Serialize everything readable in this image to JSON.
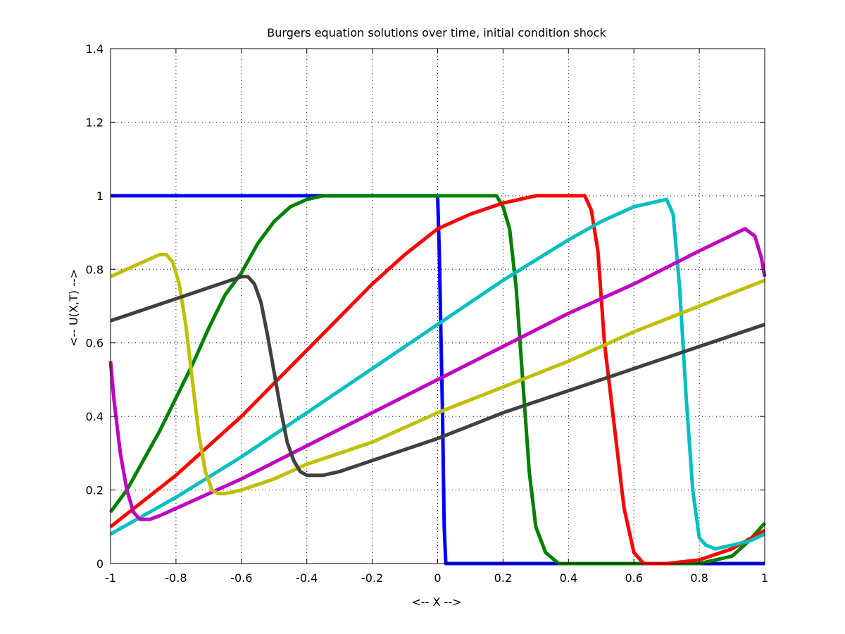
{
  "chart_data": {
    "type": "line",
    "title": "Burgers equation solutions over time, initial condition shock",
    "xlabel": "<-- X -->",
    "ylabel": "<-- U(X,T) -->",
    "xlim": [
      -1,
      1
    ],
    "ylim": [
      0,
      1.4
    ],
    "xticks": [
      -1,
      -0.8,
      -0.6,
      -0.4,
      -0.2,
      0,
      0.2,
      0.4,
      0.6,
      0.8,
      1
    ],
    "xtick_labels": [
      "-1",
      "-0.8",
      "-0.6",
      "-0.4",
      "-0.2",
      "0",
      "0.2",
      "0.4",
      "0.6",
      "0.8",
      "1"
    ],
    "yticks": [
      0,
      0.2,
      0.4,
      0.6,
      0.8,
      1,
      1.2,
      1.4
    ],
    "ytick_labels": [
      "0",
      "0.2",
      "0.4",
      "0.6",
      "0.8",
      "1",
      "1.2",
      "1.4"
    ],
    "grid": true,
    "legend": "none",
    "series": [
      {
        "color": "#0000ff",
        "x": [
          -1,
          -0.3,
          0.0,
          0.005,
          0.015,
          0.02,
          0.025,
          1
        ],
        "y": [
          1,
          1,
          1,
          0.85,
          0.4,
          0.1,
          0.0,
          0.0
        ]
      },
      {
        "color": "#008000",
        "x": [
          -1,
          -0.95,
          -0.9,
          -0.85,
          -0.8,
          -0.75,
          -0.7,
          -0.65,
          -0.6,
          -0.55,
          -0.5,
          -0.45,
          -0.4,
          -0.35,
          -0.3,
          -0.25,
          0.0,
          0.15,
          0.18,
          0.2,
          0.22,
          0.24,
          0.26,
          0.28,
          0.3,
          0.33,
          0.37,
          0.45,
          0.65,
          0.8,
          0.9,
          0.95,
          1.0
        ],
        "y": [
          0.14,
          0.2,
          0.28,
          0.36,
          0.45,
          0.54,
          0.64,
          0.73,
          0.79,
          0.87,
          0.93,
          0.97,
          0.99,
          1.0,
          1.0,
          1.0,
          1.0,
          1.0,
          1.0,
          0.97,
          0.91,
          0.75,
          0.5,
          0.25,
          0.1,
          0.03,
          0.0,
          0.0,
          0.0,
          0.0,
          0.02,
          0.06,
          0.11
        ]
      },
      {
        "color": "#ff0000",
        "x": [
          -1,
          -0.8,
          -0.6,
          -0.4,
          -0.2,
          -0.1,
          0.0,
          0.1,
          0.2,
          0.3,
          0.4,
          0.45,
          0.47,
          0.49,
          0.51,
          0.53,
          0.55,
          0.57,
          0.6,
          0.63,
          0.7,
          0.8,
          0.9,
          1.0
        ],
        "y": [
          0.1,
          0.24,
          0.4,
          0.58,
          0.76,
          0.84,
          0.91,
          0.95,
          0.98,
          1.0,
          1.0,
          1.0,
          0.96,
          0.85,
          0.6,
          0.45,
          0.3,
          0.15,
          0.03,
          0.0,
          0.0,
          0.01,
          0.04,
          0.09
        ]
      },
      {
        "color": "#00bfbf",
        "x": [
          -1,
          -0.8,
          -0.6,
          -0.4,
          -0.2,
          0.0,
          0.2,
          0.4,
          0.5,
          0.6,
          0.7,
          0.72,
          0.74,
          0.76,
          0.78,
          0.8,
          0.82,
          0.85,
          0.9,
          0.95,
          1.0
        ],
        "y": [
          0.08,
          0.18,
          0.29,
          0.41,
          0.53,
          0.65,
          0.77,
          0.88,
          0.93,
          0.97,
          0.99,
          0.95,
          0.75,
          0.45,
          0.2,
          0.07,
          0.05,
          0.04,
          0.05,
          0.06,
          0.08
        ]
      },
      {
        "color": "#bf00bf",
        "x": [
          -1,
          -0.99,
          -0.97,
          -0.95,
          -0.93,
          -0.91,
          -0.88,
          -0.85,
          -0.8,
          -0.6,
          -0.4,
          -0.2,
          0.0,
          0.2,
          0.4,
          0.6,
          0.8,
          0.94,
          0.97,
          0.99,
          1.0
        ],
        "y": [
          0.55,
          0.45,
          0.3,
          0.2,
          0.14,
          0.12,
          0.12,
          0.13,
          0.15,
          0.23,
          0.32,
          0.41,
          0.5,
          0.59,
          0.68,
          0.76,
          0.85,
          0.91,
          0.89,
          0.83,
          0.78
        ]
      },
      {
        "color": "#bfbf00",
        "x": [
          -1,
          -0.9,
          -0.85,
          -0.83,
          -0.81,
          -0.79,
          -0.77,
          -0.75,
          -0.73,
          -0.71,
          -0.69,
          -0.67,
          -0.65,
          -0.6,
          -0.5,
          -0.4,
          -0.2,
          0.0,
          0.2,
          0.4,
          0.6,
          0.8,
          1.0
        ],
        "y": [
          0.78,
          0.82,
          0.84,
          0.84,
          0.82,
          0.76,
          0.65,
          0.5,
          0.35,
          0.25,
          0.2,
          0.19,
          0.19,
          0.2,
          0.23,
          0.27,
          0.33,
          0.41,
          0.48,
          0.55,
          0.63,
          0.7,
          0.77
        ]
      },
      {
        "color": "#404040",
        "x": [
          -1,
          -0.9,
          -0.8,
          -0.7,
          -0.6,
          -0.58,
          -0.56,
          -0.54,
          -0.52,
          -0.5,
          -0.48,
          -0.46,
          -0.44,
          -0.42,
          -0.4,
          -0.38,
          -0.35,
          -0.3,
          -0.2,
          0.0,
          0.2,
          0.4,
          0.6,
          0.8,
          1.0
        ],
        "y": [
          0.66,
          0.69,
          0.72,
          0.75,
          0.78,
          0.78,
          0.76,
          0.71,
          0.62,
          0.52,
          0.42,
          0.33,
          0.28,
          0.25,
          0.24,
          0.24,
          0.24,
          0.25,
          0.28,
          0.34,
          0.41,
          0.47,
          0.53,
          0.59,
          0.65
        ]
      }
    ]
  }
}
